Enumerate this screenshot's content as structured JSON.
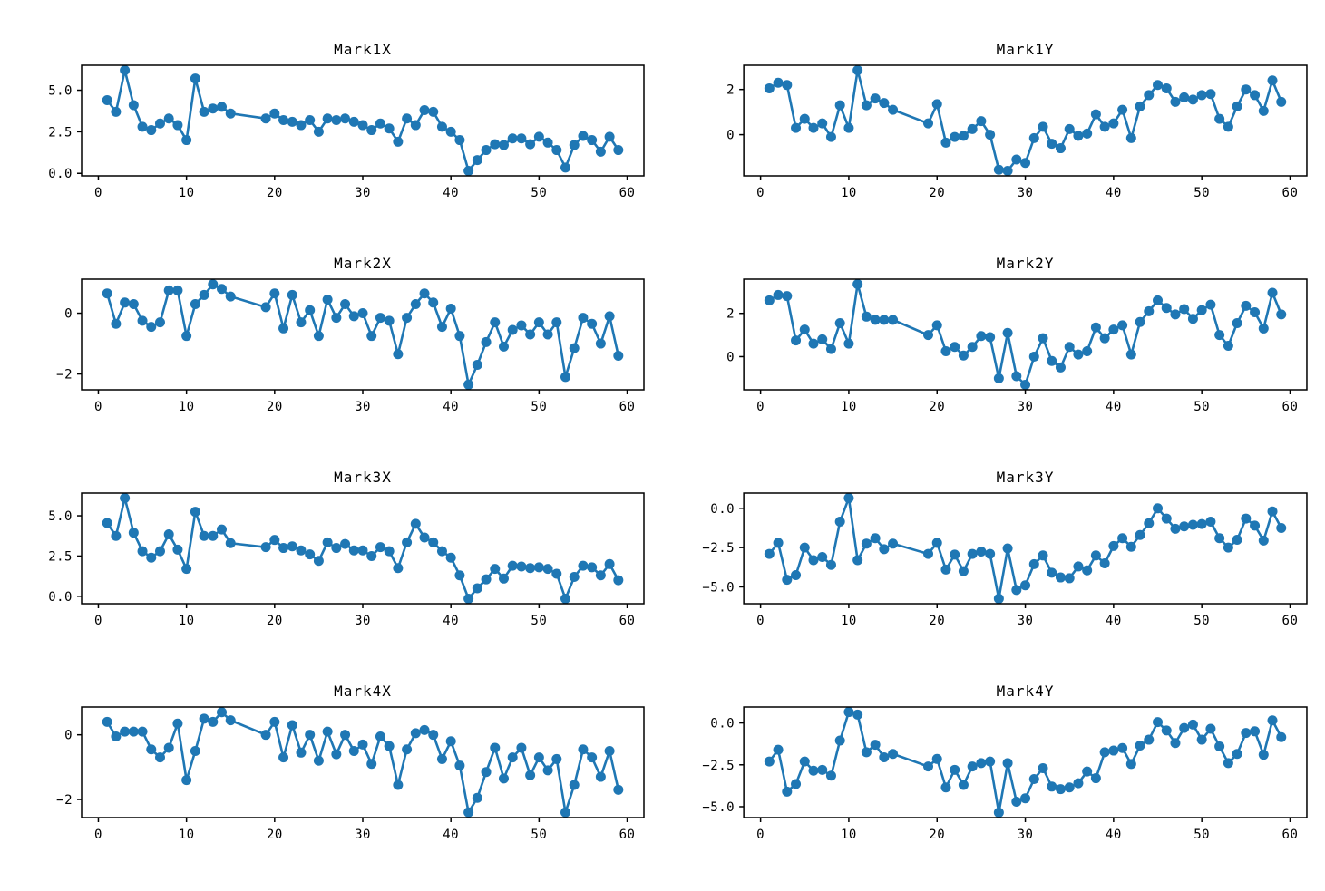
{
  "figure": {
    "background": "#ffffff",
    "line_color": "#1f77b4",
    "spine_color": "#000000",
    "text_color": "#000000",
    "marker": "circle",
    "grid": false,
    "legend": "none",
    "layout": {
      "rows": 4,
      "cols": 2,
      "order": [
        "Mark1X",
        "Mark1Y",
        "Mark2X",
        "Mark2Y",
        "Mark3X",
        "Mark3Y",
        "Mark4X",
        "Mark4Y"
      ]
    }
  },
  "chart_data": [
    {
      "type": "line",
      "title": "Mark1X",
      "xlabel": "",
      "ylabel": "",
      "xlim": [
        -1.9,
        61.9
      ],
      "ylim": [
        -0.15,
        6.5
      ],
      "xticks": [
        0,
        10,
        20,
        30,
        40,
        50,
        60
      ],
      "xtick_labels": [
        "0",
        "10",
        "20",
        "30",
        "40",
        "50",
        "60"
      ],
      "yticks": [
        0.0,
        2.5,
        5.0
      ],
      "ytick_labels": [
        "0.0",
        "2.5",
        "5.0"
      ],
      "x": [
        1,
        2,
        3,
        4,
        5,
        6,
        7,
        8,
        9,
        10,
        11,
        12,
        13,
        14,
        15,
        19,
        20,
        21,
        22,
        23,
        24,
        25,
        26,
        27,
        28,
        29,
        30,
        31,
        32,
        33,
        34,
        35,
        36,
        37,
        38,
        39,
        40,
        41,
        42,
        43,
        44,
        45,
        46,
        47,
        48,
        49,
        50,
        51,
        52,
        53,
        54,
        55,
        56,
        57,
        58,
        59
      ],
      "y": [
        4.4,
        3.7,
        6.2,
        4.1,
        2.8,
        2.6,
        3.0,
        3.3,
        2.9,
        2.0,
        5.7,
        3.7,
        3.9,
        4.0,
        3.6,
        3.3,
        3.6,
        3.2,
        3.1,
        2.9,
        3.2,
        2.5,
        3.3,
        3.2,
        3.3,
        3.1,
        2.9,
        2.6,
        3.0,
        2.7,
        1.9,
        3.3,
        2.9,
        3.8,
        3.7,
        2.8,
        2.5,
        2.0,
        0.15,
        0.8,
        1.4,
        1.75,
        1.7,
        2.1,
        2.1,
        1.75,
        2.2,
        1.85,
        1.4,
        0.35,
        1.7,
        2.25,
        2.0,
        1.3,
        2.2,
        1.4
      ]
    },
    {
      "type": "line",
      "title": "Mark1Y",
      "xlabel": "",
      "ylabel": "",
      "xlim": [
        -1.9,
        61.9
      ],
      "ylim": [
        -1.82,
        3.07
      ],
      "xticks": [
        0,
        10,
        20,
        30,
        40,
        50,
        60
      ],
      "xtick_labels": [
        "0",
        "10",
        "20",
        "30",
        "40",
        "50",
        "60"
      ],
      "yticks": [
        0,
        2
      ],
      "ytick_labels": [
        "0",
        "2"
      ],
      "x": [
        1,
        2,
        3,
        4,
        5,
        6,
        7,
        8,
        9,
        10,
        11,
        12,
        13,
        14,
        15,
        19,
        20,
        21,
        22,
        23,
        24,
        25,
        26,
        27,
        28,
        29,
        30,
        31,
        32,
        33,
        34,
        35,
        36,
        37,
        38,
        39,
        40,
        41,
        42,
        43,
        44,
        45,
        46,
        47,
        48,
        49,
        50,
        51,
        52,
        53,
        54,
        55,
        56,
        57,
        58,
        59
      ],
      "y": [
        2.05,
        2.3,
        2.2,
        0.3,
        0.7,
        0.3,
        0.5,
        -0.1,
        1.3,
        0.3,
        2.85,
        1.3,
        1.6,
        1.4,
        1.1,
        0.5,
        1.35,
        -0.35,
        -0.1,
        -0.05,
        0.25,
        0.6,
        0.0,
        -1.55,
        -1.6,
        -1.1,
        -1.25,
        -0.15,
        0.35,
        -0.4,
        -0.6,
        0.25,
        -0.05,
        0.05,
        0.9,
        0.35,
        0.5,
        1.1,
        -0.15,
        1.25,
        1.75,
        2.2,
        2.05,
        1.45,
        1.65,
        1.55,
        1.75,
        1.8,
        0.7,
        0.35,
        1.25,
        2.0,
        1.75,
        1.05,
        2.4,
        1.45
      ]
    },
    {
      "type": "line",
      "title": "Mark2X",
      "xlabel": "",
      "ylabel": "",
      "xlim": [
        -1.9,
        61.9
      ],
      "ylim": [
        -2.52,
        1.12
      ],
      "xticks": [
        0,
        10,
        20,
        30,
        40,
        50,
        60
      ],
      "xtick_labels": [
        "0",
        "10",
        "20",
        "30",
        "40",
        "50",
        "60"
      ],
      "yticks": [
        -2,
        0
      ],
      "ytick_labels": [
        "−2",
        "0"
      ],
      "x": [
        1,
        2,
        3,
        4,
        5,
        6,
        7,
        8,
        9,
        10,
        11,
        12,
        13,
        14,
        15,
        19,
        20,
        21,
        22,
        23,
        24,
        25,
        26,
        27,
        28,
        29,
        30,
        31,
        32,
        33,
        34,
        35,
        36,
        37,
        38,
        39,
        40,
        41,
        42,
        43,
        44,
        45,
        46,
        47,
        48,
        49,
        50,
        51,
        52,
        53,
        54,
        55,
        56,
        57,
        58,
        59
      ],
      "y": [
        0.65,
        -0.35,
        0.35,
        0.3,
        -0.25,
        -0.45,
        -0.3,
        0.75,
        0.75,
        -0.75,
        0.3,
        0.6,
        0.95,
        0.8,
        0.55,
        0.2,
        0.65,
        -0.5,
        0.6,
        -0.3,
        0.1,
        -0.75,
        0.45,
        -0.15,
        0.3,
        -0.1,
        0.0,
        -0.75,
        -0.15,
        -0.25,
        -1.35,
        -0.15,
        0.3,
        0.65,
        0.35,
        -0.45,
        0.15,
        -0.75,
        -2.35,
        -1.7,
        -0.95,
        -0.3,
        -1.1,
        -0.55,
        -0.4,
        -0.7,
        -0.3,
        -0.7,
        -0.3,
        -2.1,
        -1.15,
        -0.15,
        -0.35,
        -1.0,
        -0.1,
        -1.4
      ]
    },
    {
      "type": "line",
      "title": "Mark2Y",
      "xlabel": "",
      "ylabel": "",
      "xlim": [
        -1.9,
        61.9
      ],
      "ylim": [
        -1.53,
        3.58
      ],
      "xticks": [
        0,
        10,
        20,
        30,
        40,
        50,
        60
      ],
      "xtick_labels": [
        "0",
        "10",
        "20",
        "30",
        "40",
        "50",
        "60"
      ],
      "yticks": [
        0,
        2
      ],
      "ytick_labels": [
        "0",
        "2"
      ],
      "x": [
        1,
        2,
        3,
        4,
        5,
        6,
        7,
        8,
        9,
        10,
        11,
        12,
        13,
        14,
        15,
        19,
        20,
        21,
        22,
        23,
        24,
        25,
        26,
        27,
        28,
        29,
        30,
        31,
        32,
        33,
        34,
        35,
        36,
        37,
        38,
        39,
        40,
        41,
        42,
        43,
        44,
        45,
        46,
        47,
        48,
        49,
        50,
        51,
        52,
        53,
        54,
        55,
        56,
        57,
        58,
        59
      ],
      "y": [
        2.6,
        2.85,
        2.8,
        0.75,
        1.25,
        0.6,
        0.8,
        0.35,
        1.55,
        0.6,
        3.35,
        1.85,
        1.7,
        1.7,
        1.7,
        1.0,
        1.45,
        0.25,
        0.45,
        0.05,
        0.45,
        0.95,
        0.9,
        -1.0,
        1.1,
        -0.9,
        -1.3,
        0.0,
        0.85,
        -0.2,
        -0.5,
        0.45,
        0.1,
        0.25,
        1.35,
        0.85,
        1.25,
        1.45,
        0.1,
        1.6,
        2.1,
        2.6,
        2.25,
        1.95,
        2.2,
        1.75,
        2.15,
        2.4,
        1.0,
        0.5,
        1.55,
        2.35,
        2.05,
        1.3,
        2.95,
        1.95
      ]
    },
    {
      "type": "line",
      "title": "Mark3X",
      "xlabel": "",
      "ylabel": "",
      "xlim": [
        -1.9,
        61.9
      ],
      "ylim": [
        -0.46,
        6.41
      ],
      "xticks": [
        0,
        10,
        20,
        30,
        40,
        50,
        60
      ],
      "xtick_labels": [
        "0",
        "10",
        "20",
        "30",
        "40",
        "50",
        "60"
      ],
      "yticks": [
        0.0,
        2.5,
        5.0
      ],
      "ytick_labels": [
        "0.0",
        "2.5",
        "5.0"
      ],
      "x": [
        1,
        2,
        3,
        4,
        5,
        6,
        7,
        8,
        9,
        10,
        11,
        12,
        13,
        14,
        15,
        19,
        20,
        21,
        22,
        23,
        24,
        25,
        26,
        27,
        28,
        29,
        30,
        31,
        32,
        33,
        34,
        35,
        36,
        37,
        38,
        39,
        40,
        41,
        42,
        43,
        44,
        45,
        46,
        47,
        48,
        49,
        50,
        51,
        52,
        53,
        54,
        55,
        56,
        57,
        58,
        59
      ],
      "y": [
        4.55,
        3.75,
        6.1,
        3.95,
        2.8,
        2.4,
        2.8,
        3.85,
        2.9,
        1.7,
        5.25,
        3.75,
        3.75,
        4.15,
        3.3,
        3.05,
        3.5,
        3.0,
        3.1,
        2.85,
        2.6,
        2.2,
        3.35,
        3.0,
        3.25,
        2.85,
        2.85,
        2.5,
        3.05,
        2.8,
        1.75,
        3.35,
        4.5,
        3.65,
        3.35,
        2.8,
        2.4,
        1.3,
        -0.15,
        0.5,
        1.05,
        1.7,
        1.1,
        1.9,
        1.85,
        1.75,
        1.8,
        1.7,
        1.4,
        -0.15,
        1.2,
        1.9,
        1.8,
        1.3,
        2.0,
        1.0
      ]
    },
    {
      "type": "line",
      "title": "Mark3Y",
      "xlabel": "",
      "ylabel": "",
      "xlim": [
        -1.9,
        61.9
      ],
      "ylim": [
        -6.07,
        0.97
      ],
      "xticks": [
        0,
        10,
        20,
        30,
        40,
        50,
        60
      ],
      "xtick_labels": [
        "0",
        "10",
        "20",
        "30",
        "40",
        "50",
        "60"
      ],
      "yticks": [
        -5.0,
        -2.5,
        0.0
      ],
      "ytick_labels": [
        "−5.0",
        "−2.5",
        "0.0"
      ],
      "x": [
        1,
        2,
        3,
        4,
        5,
        6,
        7,
        8,
        9,
        10,
        11,
        12,
        13,
        14,
        15,
        19,
        20,
        21,
        22,
        23,
        24,
        25,
        26,
        27,
        28,
        29,
        30,
        31,
        32,
        33,
        34,
        35,
        36,
        37,
        38,
        39,
        40,
        41,
        42,
        43,
        44,
        45,
        46,
        47,
        48,
        49,
        50,
        51,
        52,
        53,
        54,
        55,
        56,
        57,
        58,
        59
      ],
      "y": [
        -2.9,
        -2.2,
        -4.55,
        -4.25,
        -2.5,
        -3.3,
        -3.1,
        -3.6,
        -0.85,
        0.65,
        -3.3,
        -2.25,
        -1.9,
        -2.6,
        -2.25,
        -2.9,
        -2.2,
        -3.9,
        -2.95,
        -4.0,
        -2.9,
        -2.75,
        -2.9,
        -5.75,
        -2.55,
        -5.2,
        -4.9,
        -3.55,
        -3.0,
        -4.1,
        -4.4,
        -4.45,
        -3.7,
        -3.95,
        -3.0,
        -3.5,
        -2.4,
        -1.9,
        -2.45,
        -1.7,
        -0.95,
        0.0,
        -0.65,
        -1.3,
        -1.15,
        -1.05,
        -1.0,
        -0.85,
        -1.9,
        -2.5,
        -2.0,
        -0.65,
        -1.1,
        -2.05,
        -0.2,
        -1.25
      ]
    },
    {
      "type": "line",
      "title": "Mark4X",
      "xlabel": "",
      "ylabel": "",
      "xlim": [
        -1.9,
        61.9
      ],
      "ylim": [
        -2.56,
        0.86
      ],
      "xticks": [
        0,
        10,
        20,
        30,
        40,
        50,
        60
      ],
      "xtick_labels": [
        "0",
        "10",
        "20",
        "30",
        "40",
        "50",
        "60"
      ],
      "yticks": [
        -2,
        0
      ],
      "ytick_labels": [
        "−2",
        "0"
      ],
      "x": [
        1,
        2,
        3,
        4,
        5,
        6,
        7,
        8,
        9,
        10,
        11,
        12,
        13,
        14,
        15,
        19,
        20,
        21,
        22,
        23,
        24,
        25,
        26,
        27,
        28,
        29,
        30,
        31,
        32,
        33,
        34,
        35,
        36,
        37,
        38,
        39,
        40,
        41,
        42,
        43,
        44,
        45,
        46,
        47,
        48,
        49,
        50,
        51,
        52,
        53,
        54,
        55,
        56,
        57,
        58,
        59
      ],
      "y": [
        0.4,
        -0.05,
        0.1,
        0.1,
        0.1,
        -0.45,
        -0.7,
        -0.4,
        0.35,
        -1.4,
        -0.5,
        0.5,
        0.4,
        0.7,
        0.45,
        0.0,
        0.4,
        -0.7,
        0.3,
        -0.55,
        0.0,
        -0.8,
        0.1,
        -0.6,
        0.0,
        -0.5,
        -0.3,
        -0.9,
        -0.05,
        -0.35,
        -1.55,
        -0.45,
        0.05,
        0.15,
        0.0,
        -0.75,
        -0.2,
        -0.95,
        -2.4,
        -1.95,
        -1.15,
        -0.4,
        -1.35,
        -0.7,
        -0.4,
        -1.25,
        -0.7,
        -1.1,
        -0.75,
        -2.4,
        -1.55,
        -0.45,
        -0.7,
        -1.3,
        -0.5,
        -1.7
      ]
    },
    {
      "type": "line",
      "title": "Mark4Y",
      "xlabel": "",
      "ylabel": "",
      "xlim": [
        -1.9,
        61.9
      ],
      "ylim": [
        -5.65,
        0.95
      ],
      "xticks": [
        0,
        10,
        20,
        30,
        40,
        50,
        60
      ],
      "xtick_labels": [
        "0",
        "10",
        "20",
        "30",
        "40",
        "50",
        "60"
      ],
      "yticks": [
        -5.0,
        -2.5,
        0.0
      ],
      "ytick_labels": [
        "−5.0",
        "−2.5",
        "0.0"
      ],
      "x": [
        1,
        2,
        3,
        4,
        5,
        6,
        7,
        8,
        9,
        10,
        11,
        12,
        13,
        14,
        15,
        19,
        20,
        21,
        22,
        23,
        24,
        25,
        26,
        27,
        28,
        29,
        30,
        31,
        32,
        33,
        34,
        35,
        36,
        37,
        38,
        39,
        40,
        41,
        42,
        43,
        44,
        45,
        46,
        47,
        48,
        49,
        50,
        51,
        52,
        53,
        54,
        55,
        56,
        57,
        58,
        59
      ],
      "y": [
        -2.3,
        -1.6,
        -4.1,
        -3.65,
        -2.3,
        -2.85,
        -2.8,
        -3.15,
        -1.05,
        0.65,
        0.5,
        -1.75,
        -1.3,
        -2.05,
        -1.85,
        -2.6,
        -2.15,
        -3.85,
        -2.8,
        -3.7,
        -2.6,
        -2.4,
        -2.3,
        -5.35,
        -2.4,
        -4.7,
        -4.5,
        -3.35,
        -2.7,
        -3.8,
        -3.95,
        -3.85,
        -3.6,
        -2.9,
        -3.3,
        -1.75,
        -1.65,
        -1.5,
        -2.45,
        -1.35,
        -1.0,
        0.05,
        -0.45,
        -1.2,
        -0.3,
        -0.1,
        -1.0,
        -0.35,
        -1.4,
        -2.4,
        -1.85,
        -0.6,
        -0.5,
        -1.9,
        0.15,
        -0.85
      ]
    }
  ]
}
